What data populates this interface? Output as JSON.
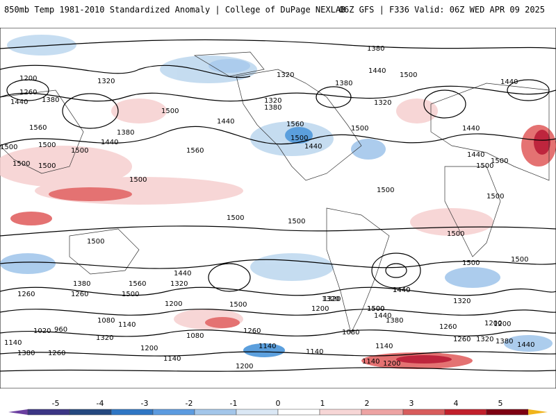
{
  "header": {
    "title_left": "850mb Temp 1981-2010 Standardized Anomaly | College of DuPage NEXLAB",
    "title_right": "06Z GFS | F336 Valid: 06Z WED APR 09 2025"
  },
  "colors": {
    "land_outline": "#333333",
    "contour": "#000000",
    "cold_strong": "#1c4fa0",
    "cold": "#3f8fd8",
    "cold_light": "#bcd7ee",
    "warm_light": "#f6cfcf",
    "warm": "#e05a5a",
    "warm_strong": "#b3001c"
  },
  "contours": {
    "labels": [
      "1380",
      "1200",
      "1320",
      "1440",
      "1380",
      "1500",
      "1320",
      "1260",
      "1320",
      "1440",
      "1500",
      "1380",
      "1440",
      "1500",
      "1440",
      "1500",
      "1560",
      "1440",
      "1500",
      "1380",
      "1320",
      "1380",
      "1560",
      "1500",
      "1560",
      "1440",
      "1500",
      "1440",
      "1500",
      "1440",
      "1500",
      "1500",
      "1500",
      "1500",
      "1500",
      "1500",
      "1500",
      "1500",
      "1500",
      "1500",
      "1500",
      "1440",
      "1380",
      "1260",
      "1320",
      "1560",
      "1500",
      "1500",
      "1440",
      "1320",
      "1200",
      "1320",
      "1500",
      "1500",
      "1020",
      "960",
      "1080",
      "1140",
      "1200",
      "1320",
      "1440",
      "1500",
      "1440",
      "1260",
      "1380",
      "1260",
      "1200",
      "1140",
      "1080",
      "1140",
      "1320",
      "1200",
      "1260",
      "1140",
      "1380",
      "1200",
      "1140",
      "1080",
      "1260",
      "1140",
      "1200",
      "1320",
      "1260",
      "1380",
      "1440",
      "1200",
      "1140"
    ]
  },
  "colorbar": {
    "ticks": [
      "-5",
      "-4",
      "-3",
      "-2",
      "-1",
      "0",
      "1",
      "2",
      "3",
      "4",
      "5"
    ],
    "colors": [
      "#3b3584",
      "#24487f",
      "#2f76c4",
      "#5c9be0",
      "#a3c6ea",
      "#dbe8f5",
      "#ffffff",
      "#f7d6d6",
      "#eda3a3",
      "#d85c5c",
      "#c11f2b",
      "#7d0012"
    ],
    "end_low": "#6b3fa0",
    "end_high": "#f0b41c"
  }
}
